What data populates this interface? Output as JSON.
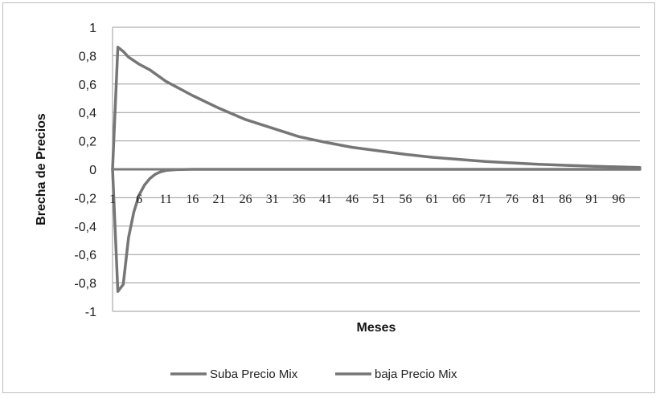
{
  "chart_data": {
    "type": "line",
    "xlabel": "Meses",
    "ylabel": "Brecha de Precios",
    "ylim": [
      -1,
      1
    ],
    "xlim": [
      1,
      100
    ],
    "yticks": [
      "1",
      "0,8",
      "0,6",
      "0,4",
      "0,2",
      "0",
      "-0,2",
      "-0,4",
      "-0,6",
      "-0,8",
      "-1"
    ],
    "ytick_values": [
      1,
      0.8,
      0.6,
      0.4,
      0.2,
      0,
      -0.2,
      -0.4,
      -0.6,
      -0.8,
      -1
    ],
    "xticks": [
      "1",
      "6",
      "11",
      "16",
      "21",
      "26",
      "31",
      "36",
      "41",
      "46",
      "51",
      "56",
      "61",
      "66",
      "71",
      "76",
      "81",
      "86",
      "91",
      "96"
    ],
    "xtick_values": [
      1,
      6,
      11,
      16,
      21,
      26,
      31,
      36,
      41,
      46,
      51,
      56,
      61,
      66,
      71,
      76,
      81,
      86,
      91,
      96
    ],
    "grid": "horizontal",
    "legend_position": "bottom",
    "series": [
      {
        "name": "Suba Precio Mix",
        "color": "#767676",
        "x": [
          1,
          2,
          3,
          4,
          6,
          8,
          11,
          16,
          21,
          26,
          31,
          36,
          41,
          46,
          51,
          56,
          61,
          66,
          71,
          76,
          81,
          86,
          91,
          96,
          100
        ],
        "y": [
          0,
          0.86,
          0.83,
          0.79,
          0.74,
          0.7,
          0.62,
          0.52,
          0.43,
          0.35,
          0.29,
          0.23,
          0.19,
          0.155,
          0.13,
          0.105,
          0.085,
          0.07,
          0.055,
          0.045,
          0.035,
          0.028,
          0.022,
          0.017,
          0.013
        ]
      },
      {
        "name": "baja Precio Mix",
        "color": "#767676",
        "x": [
          1,
          2,
          3,
          4,
          5,
          6,
          7,
          8,
          9,
          10,
          11,
          13,
          16,
          20,
          30,
          40,
          60,
          80,
          100
        ],
        "y": [
          0,
          -0.86,
          -0.81,
          -0.48,
          -0.3,
          -0.18,
          -0.11,
          -0.065,
          -0.035,
          -0.018,
          -0.008,
          -0.002,
          0,
          0,
          0,
          0,
          0,
          0,
          0
        ]
      }
    ]
  }
}
